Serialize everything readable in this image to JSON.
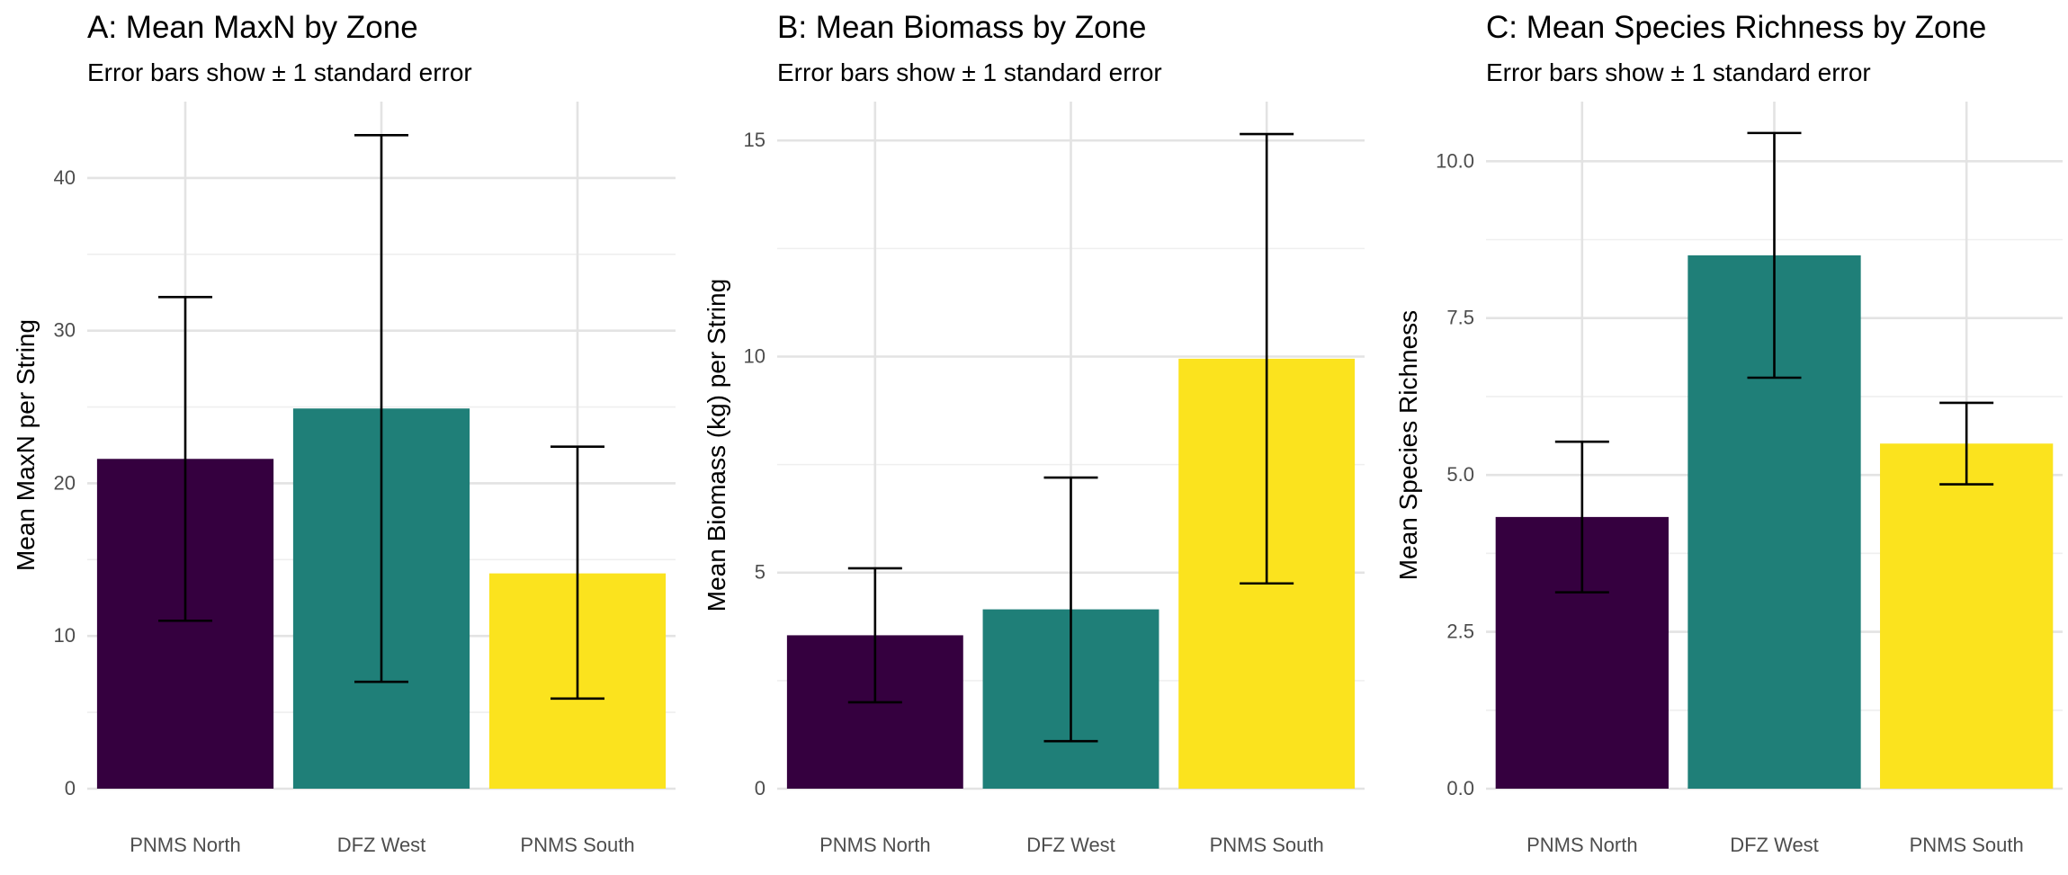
{
  "chart_data": [
    {
      "type": "bar",
      "title": "A: Mean MaxN by Zone",
      "subtitle": "Error bars show ± 1 standard error",
      "xlabel": "",
      "ylabel": "Mean MaxN per String",
      "categories": [
        "PNMS North",
        "DFZ West",
        "PNMS South"
      ],
      "values": [
        21.6,
        24.9,
        14.1
      ],
      "error_low": [
        11.0,
        7.0,
        5.9
      ],
      "error_high": [
        32.2,
        42.8,
        22.4
      ],
      "ylim": [
        0,
        45
      ],
      "yticks": [
        0,
        10,
        20,
        30,
        40
      ],
      "ytick_labels": [
        "0",
        "10",
        "20",
        "30",
        "40"
      ],
      "minor_yticks": [
        5,
        15,
        25,
        35
      ],
      "grid": true,
      "legend": "none"
    },
    {
      "type": "bar",
      "title": "B: Mean Biomass by Zone",
      "subtitle": "Error bars show ± 1 standard error",
      "xlabel": "",
      "ylabel": "Mean Biomass (kg) per String",
      "categories": [
        "PNMS North",
        "DFZ West",
        "PNMS South"
      ],
      "values": [
        3.55,
        4.15,
        9.95
      ],
      "error_low": [
        2.0,
        1.1,
        4.75
      ],
      "error_high": [
        5.1,
        7.2,
        15.15
      ],
      "ylim": [
        0,
        15.9
      ],
      "yticks": [
        0,
        5,
        10,
        15
      ],
      "ytick_labels": [
        "0",
        "5",
        "10",
        "15"
      ],
      "minor_yticks": [
        2.5,
        7.5,
        12.5
      ],
      "grid": true,
      "legend": "none"
    },
    {
      "type": "bar",
      "title": "C: Mean Species Richness by Zone",
      "subtitle": "Error bars show ± 1 standard error",
      "xlabel": "",
      "ylabel": "Mean Species Richness",
      "categories": [
        "PNMS North",
        "DFZ West",
        "PNMS South"
      ],
      "values": [
        4.33,
        8.5,
        5.5
      ],
      "error_low": [
        3.13,
        6.55,
        4.85
      ],
      "error_high": [
        5.53,
        10.45,
        6.15
      ],
      "ylim": [
        0,
        10.95
      ],
      "yticks": [
        0,
        2.5,
        5,
        7.5,
        10
      ],
      "ytick_labels": [
        "0.0",
        "2.5",
        "5.0",
        "7.5",
        "10.0"
      ],
      "minor_yticks": [
        1.25,
        3.75,
        6.25,
        8.75
      ],
      "grid": true,
      "legend": "none"
    }
  ],
  "colors": {
    "bars": [
      "#35003f",
      "#1f7f78",
      "#fbe31e"
    ],
    "grid_major": "#e3e3e3",
    "grid_minor": "#efefef",
    "error_bar": "#000000",
    "text": "#000000",
    "tick_text": "#4d4d4d"
  }
}
